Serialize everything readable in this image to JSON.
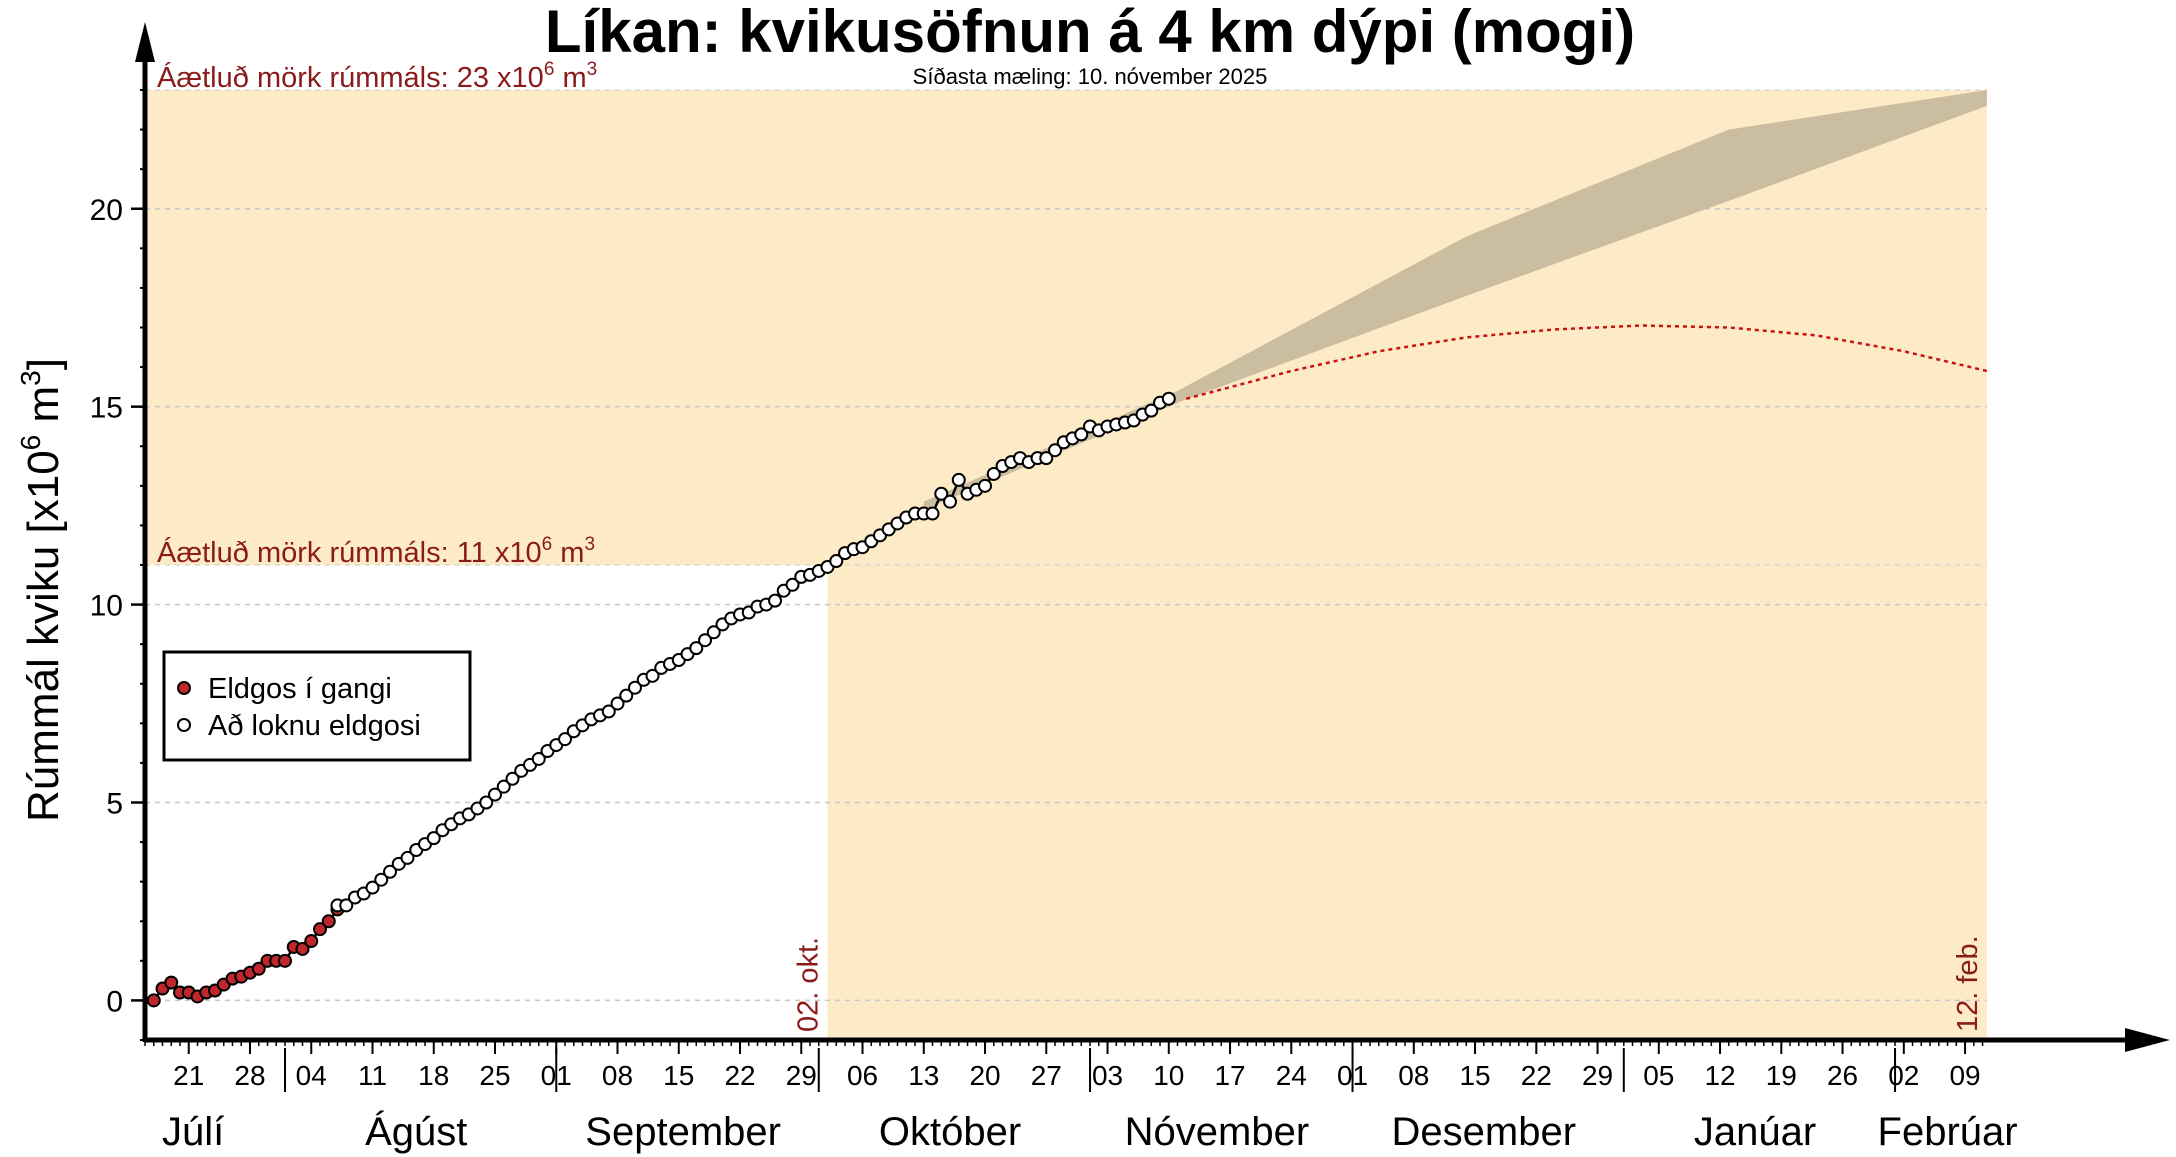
{
  "chart_data": {
    "type": "scatter",
    "title": "Líkan: kvikusöfnun á 4 km dýpi (mogi)",
    "subtitle": "Síðasta mæling: 10. nóvember 2025",
    "ylabel": "Rúmmál kviku [x10",
    "ylabel_sup": "6",
    "ylabel_tail": " m",
    "ylabel_sup2": "3",
    "ylabel_close": "]",
    "ylim": [
      -1,
      23
    ],
    "x_range_days": [
      -1,
      207
    ],
    "x_origin": "2025-07-17",
    "yticks": [
      0,
      5,
      10,
      15,
      20
    ],
    "ytick_labels": [
      "0",
      "5",
      "10",
      "15",
      "20"
    ],
    "xticks": [
      {
        "day": 4,
        "label": "21"
      },
      {
        "day": 11,
        "label": "28"
      },
      {
        "day": 18,
        "label": "04"
      },
      {
        "day": 25,
        "label": "11"
      },
      {
        "day": 32,
        "label": "18"
      },
      {
        "day": 39,
        "label": "25"
      },
      {
        "day": 46,
        "label": "01"
      },
      {
        "day": 53,
        "label": "08"
      },
      {
        "day": 60,
        "label": "15"
      },
      {
        "day": 67,
        "label": "22"
      },
      {
        "day": 74,
        "label": "29"
      },
      {
        "day": 81,
        "label": "06"
      },
      {
        "day": 88,
        "label": "13"
      },
      {
        "day": 95,
        "label": "20"
      },
      {
        "day": 102,
        "label": "27"
      },
      {
        "day": 109,
        "label": "03"
      },
      {
        "day": 116,
        "label": "10"
      },
      {
        "day": 123,
        "label": "17"
      },
      {
        "day": 130,
        "label": "24"
      },
      {
        "day": 137,
        "label": "01"
      },
      {
        "day": 144,
        "label": "08"
      },
      {
        "day": 151,
        "label": "15"
      },
      {
        "day": 158,
        "label": "22"
      },
      {
        "day": 165,
        "label": "29"
      },
      {
        "day": 172,
        "label": "05"
      },
      {
        "day": 179,
        "label": "12"
      },
      {
        "day": 186,
        "label": "19"
      },
      {
        "day": 193,
        "label": "26"
      },
      {
        "day": 200,
        "label": "02"
      },
      {
        "day": 207,
        "label": "09"
      }
    ],
    "month_boundaries": [
      15,
      46,
      76,
      107,
      137,
      168,
      199
    ],
    "months": [
      {
        "label": "Júlí",
        "day": 4.5
      },
      {
        "label": "Ágúst",
        "day": 30
      },
      {
        "label": "September",
        "day": 60.5
      },
      {
        "label": "Október",
        "day": 91
      },
      {
        "label": "Nóvember",
        "day": 121.5
      },
      {
        "label": "Desember",
        "day": 152
      },
      {
        "label": "Janúar",
        "day": 183
      },
      {
        "label": "Febrúar",
        "day": 205
      }
    ],
    "threshold_band": {
      "low": 11,
      "high": 23,
      "color": "#fdebc8"
    },
    "thresholds": [
      {
        "value": 23,
        "label": "Áætluð mörk rúmmáls: 23 x10",
        "sup": "6",
        "unit": " m",
        "sup2": "3"
      },
      {
        "value": 11,
        "label": "Áætluð mörk rúmmáls: 11 x10",
        "sup": "6",
        "unit": " m",
        "sup2": "3"
      }
    ],
    "window_band": {
      "start_day": 77,
      "end_day": 209.5,
      "color": "#fdebc8"
    },
    "vertical_labels": [
      {
        "day": 76.3,
        "label": "02. okt."
      },
      {
        "day": 208.8,
        "label": "12. feb."
      }
    ],
    "projection_band": {
      "color": "#cbbd9f",
      "points": [
        {
          "day": 88,
          "lo": 12.4,
          "hi": 12.6
        },
        {
          "day": 117,
          "lo": 15.1,
          "hi": 15.4
        },
        {
          "day": 150,
          "lo": 17.8,
          "hi": 19.3
        },
        {
          "day": 180,
          "lo": 20.2,
          "hi": 22.0
        },
        {
          "day": 209.5,
          "lo": 22.6,
          "hi": 23.0
        }
      ]
    },
    "forecast_curve": {
      "color": "#cc1111",
      "points": [
        {
          "day": 118,
          "y": 15.2
        },
        {
          "day": 130,
          "y": 15.9
        },
        {
          "day": 140,
          "y": 16.4
        },
        {
          "day": 150,
          "y": 16.75
        },
        {
          "day": 160,
          "y": 16.95
        },
        {
          "day": 170,
          "y": 17.05
        },
        {
          "day": 180,
          "y": 17.0
        },
        {
          "day": 190,
          "y": 16.8
        },
        {
          "day": 200,
          "y": 16.4
        },
        {
          "day": 209.5,
          "y": 15.9
        }
      ]
    },
    "legend": {
      "position": "left",
      "entries": [
        {
          "label": "Eldgos í gangi",
          "fill": "#c0272d"
        },
        {
          "label": "Að loknu eldgosi",
          "fill": "#ffffff"
        }
      ]
    },
    "series": [
      {
        "name": "Eldgos í gangi",
        "color": "#c0272d",
        "x": [
          0,
          1,
          2,
          3,
          4,
          5,
          6,
          7,
          8,
          9,
          10,
          11,
          12,
          13,
          14,
          15,
          16,
          17,
          18,
          19,
          20,
          21
        ],
        "y": [
          0.0,
          0.3,
          0.45,
          0.2,
          0.2,
          0.1,
          0.2,
          0.25,
          0.4,
          0.55,
          0.6,
          0.7,
          0.8,
          1.0,
          1.0,
          1.0,
          1.35,
          1.3,
          1.5,
          1.8,
          2.0,
          2.3
        ]
      },
      {
        "name": "Að loknu eldgosi",
        "color": "#ffffff",
        "x": [
          21,
          22,
          23,
          24,
          25,
          26,
          27,
          28,
          29,
          30,
          31,
          32,
          33,
          34,
          35,
          36,
          37,
          38,
          39,
          40,
          41,
          42,
          43,
          44,
          45,
          46,
          47,
          48,
          49,
          50,
          51,
          52,
          53,
          54,
          55,
          56,
          57,
          58,
          59,
          60,
          61,
          62,
          63,
          64,
          65,
          66,
          67,
          68,
          69,
          70,
          71,
          72,
          73,
          74,
          75,
          76,
          77,
          78,
          79,
          80,
          81,
          82,
          83,
          84,
          85,
          86,
          87,
          88,
          89,
          90,
          91,
          92,
          93,
          94,
          95,
          96,
          97,
          98,
          99,
          100,
          101,
          102,
          103,
          104,
          105,
          106,
          107,
          108,
          109,
          110,
          111,
          112,
          113,
          114,
          115,
          116
        ],
        "y": [
          2.4,
          2.4,
          2.6,
          2.7,
          2.85,
          3.05,
          3.25,
          3.45,
          3.6,
          3.8,
          3.95,
          4.1,
          4.3,
          4.45,
          4.6,
          4.7,
          4.85,
          5.0,
          5.2,
          5.4,
          5.6,
          5.8,
          5.95,
          6.1,
          6.3,
          6.45,
          6.6,
          6.8,
          6.95,
          7.1,
          7.2,
          7.3,
          7.5,
          7.7,
          7.9,
          8.1,
          8.2,
          8.4,
          8.5,
          8.6,
          8.75,
          8.9,
          9.1,
          9.3,
          9.5,
          9.65,
          9.75,
          9.8,
          9.95,
          10.0,
          10.1,
          10.35,
          10.5,
          10.7,
          10.75,
          10.85,
          10.95,
          11.1,
          11.3,
          11.4,
          11.45,
          11.6,
          11.75,
          11.9,
          12.05,
          12.2,
          12.3,
          12.3,
          12.3,
          12.8,
          12.6,
          13.15,
          12.8,
          12.9,
          13.0,
          13.3,
          13.5,
          13.6,
          13.7,
          13.6,
          13.7,
          13.7,
          13.9,
          14.1,
          14.2,
          14.3,
          14.5,
          14.4,
          14.5,
          14.55,
          14.6,
          14.65,
          14.8,
          14.9,
          15.1,
          15.2
        ]
      }
    ]
  }
}
